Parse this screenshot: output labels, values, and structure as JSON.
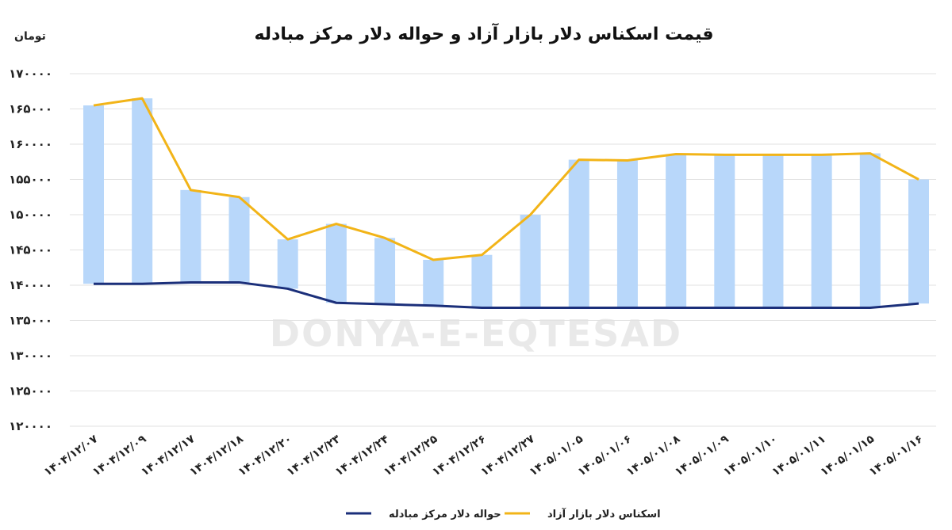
{
  "watermark": "DONYA-E-EQTESAD",
  "chart_data": {
    "type": "line",
    "title": "قیمت اسکناس دلار بازار آزاد و حواله دلار مرکز مبادله",
    "unit_label": "تومان",
    "ylim": [
      120000,
      170000
    ],
    "yticks": [
      120000,
      125000,
      130000,
      135000,
      140000,
      145000,
      150000,
      155000,
      160000,
      165000,
      170000
    ],
    "ytick_labels": [
      "۱۲۰۰۰۰",
      "۱۲۵۰۰۰",
      "۱۳۰۰۰۰",
      "۱۳۵۰۰۰",
      "۱۴۰۰۰۰",
      "۱۴۵۰۰۰",
      "۱۵۰۰۰۰",
      "۱۵۵۰۰۰",
      "۱۶۰۰۰۰",
      "۱۶۵۰۰۰",
      "۱۷۰۰۰۰"
    ],
    "grid": true,
    "legend_position": "bottom",
    "categories": [
      "۱۴۰۴/۱۲/۰۷",
      "۱۴۰۴/۱۲/۰۹",
      "۱۴۰۴/۱۲/۱۷",
      "۱۴۰۴/۱۲/۱۸",
      "۱۴۰۴/۱۲/۲۰",
      "۱۴۰۴/۱۲/۲۳",
      "۱۴۰۴/۱۲/۲۴",
      "۱۴۰۴/۱۲/۲۵",
      "۱۴۰۴/۱۲/۲۶",
      "۱۴۰۴/۱۲/۲۷",
      "۱۴۰۵/۰۱/۰۵",
      "۱۴۰۵/۰۱/۰۶",
      "۱۴۰۵/۰۱/۰۸",
      "۱۴۰۵/۰۱/۰۹",
      "۱۴۰۵/۰۱/۱۰",
      "۱۴۰۵/۰۱/۱۱",
      "۱۴۰۵/۰۱/۱۵",
      "۱۴۰۵/۰۱/۱۶"
    ],
    "series": [
      {
        "name": "اسکناس دلار بازار آزاد",
        "color": "#f2b418",
        "values": [
          165500,
          166500,
          153500,
          152500,
          146500,
          148700,
          146700,
          143600,
          144300,
          150000,
          157800,
          157700,
          158600,
          158500,
          158500,
          158500,
          158700,
          155000
        ]
      },
      {
        "name": "حواله دلار مرکز مبادله",
        "color": "#1b2f7a",
        "values": [
          140200,
          140200,
          140400,
          140400,
          139500,
          137500,
          137300,
          137100,
          136800,
          136800,
          136800,
          136800,
          136800,
          136800,
          136800,
          136800,
          136800,
          137400
        ]
      }
    ],
    "bar_color": "#b8d7fa"
  }
}
